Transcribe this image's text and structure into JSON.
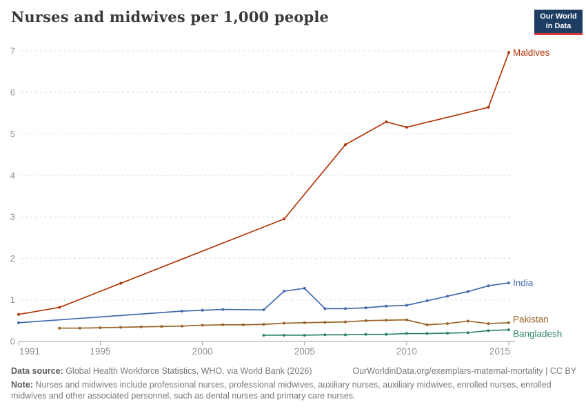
{
  "header": {
    "title": "Nurses and midwives per 1,000 people",
    "logo": {
      "line1": "Our World",
      "line2": "in Data",
      "bg": "#1d3d63",
      "accent": "#dc3539"
    }
  },
  "chart_data": {
    "type": "line",
    "title": "Nurses and midwives per 1,000 people",
    "xlabel": "",
    "ylabel": "",
    "xlim": [
      1991,
      2015
    ],
    "ylim": [
      0,
      7
    ],
    "x_ticks": [
      1991,
      1995,
      2000,
      2005,
      2010,
      2015
    ],
    "y_ticks": [
      0,
      1,
      2,
      3,
      4,
      5,
      6,
      7
    ],
    "grid": "horizontal-dashed",
    "legend_position": "right-edge-labels",
    "axis_color": "#a0a0a0",
    "grid_color": "#dedede",
    "tick_label_color": "#8f8f8f",
    "series": [
      {
        "name": "Maldives",
        "color": "#b13507",
        "points": [
          [
            1991,
            0.65
          ],
          [
            1993,
            0.82
          ],
          [
            1996,
            1.4
          ],
          [
            2004,
            2.95
          ],
          [
            2007,
            4.74
          ],
          [
            2009,
            5.29
          ],
          [
            2010,
            5.16
          ],
          [
            2014,
            5.64
          ],
          [
            2015,
            6.96
          ]
        ]
      },
      {
        "name": "India",
        "color": "#4268ae",
        "points": [
          [
            1991,
            0.45
          ],
          [
            1999,
            0.73
          ],
          [
            2000,
            0.75
          ],
          [
            2001,
            0.77
          ],
          [
            2003,
            0.76
          ],
          [
            2004,
            1.21
          ],
          [
            2005,
            1.28
          ],
          [
            2006,
            0.79
          ],
          [
            2007,
            0.79
          ],
          [
            2008,
            0.81
          ],
          [
            2009,
            0.85
          ],
          [
            2010,
            0.87
          ],
          [
            2011,
            0.98
          ],
          [
            2012,
            1.09
          ],
          [
            2013,
            1.2
          ],
          [
            2014,
            1.34
          ],
          [
            2015,
            1.41
          ]
        ]
      },
      {
        "name": "Pakistan",
        "color": "#9a6429",
        "points": [
          [
            1993,
            0.32
          ],
          [
            1994,
            0.32
          ],
          [
            1995,
            0.33
          ],
          [
            1996,
            0.34
          ],
          [
            1997,
            0.35
          ],
          [
            1998,
            0.36
          ],
          [
            1999,
            0.37
          ],
          [
            2000,
            0.39
          ],
          [
            2001,
            0.4
          ],
          [
            2002,
            0.4
          ],
          [
            2003,
            0.41
          ],
          [
            2004,
            0.44
          ],
          [
            2005,
            0.45
          ],
          [
            2006,
            0.46
          ],
          [
            2007,
            0.47
          ],
          [
            2008,
            0.5
          ],
          [
            2009,
            0.51
          ],
          [
            2010,
            0.52
          ],
          [
            2011,
            0.4
          ],
          [
            2012,
            0.43
          ],
          [
            2013,
            0.49
          ],
          [
            2014,
            0.43
          ],
          [
            2015,
            0.45
          ]
        ]
      },
      {
        "name": "Bangladesh",
        "color": "#2c8465",
        "points": [
          [
            2003,
            0.15
          ],
          [
            2004,
            0.15
          ],
          [
            2005,
            0.15
          ],
          [
            2006,
            0.16
          ],
          [
            2007,
            0.16
          ],
          [
            2008,
            0.17
          ],
          [
            2009,
            0.17
          ],
          [
            2010,
            0.19
          ],
          [
            2011,
            0.19
          ],
          [
            2012,
            0.2
          ],
          [
            2013,
            0.21
          ],
          [
            2014,
            0.26
          ],
          [
            2015,
            0.28
          ]
        ]
      }
    ]
  },
  "footer": {
    "data_source_label": "Data source:",
    "data_source_text": " Global Health Workforce Statistics, WHO, via World Bank (2026)",
    "link": "OurWorldinData.org/exemplars-maternal-mortality | CC BY",
    "note_label": "Note:",
    "note_text": " Nurses and midwives include professional nurses, professional midwives, auxiliary nurses, auxiliary midwives, enrolled nurses, enrolled midwives and other associated personnel, such as dental nurses and primary care nurses."
  }
}
